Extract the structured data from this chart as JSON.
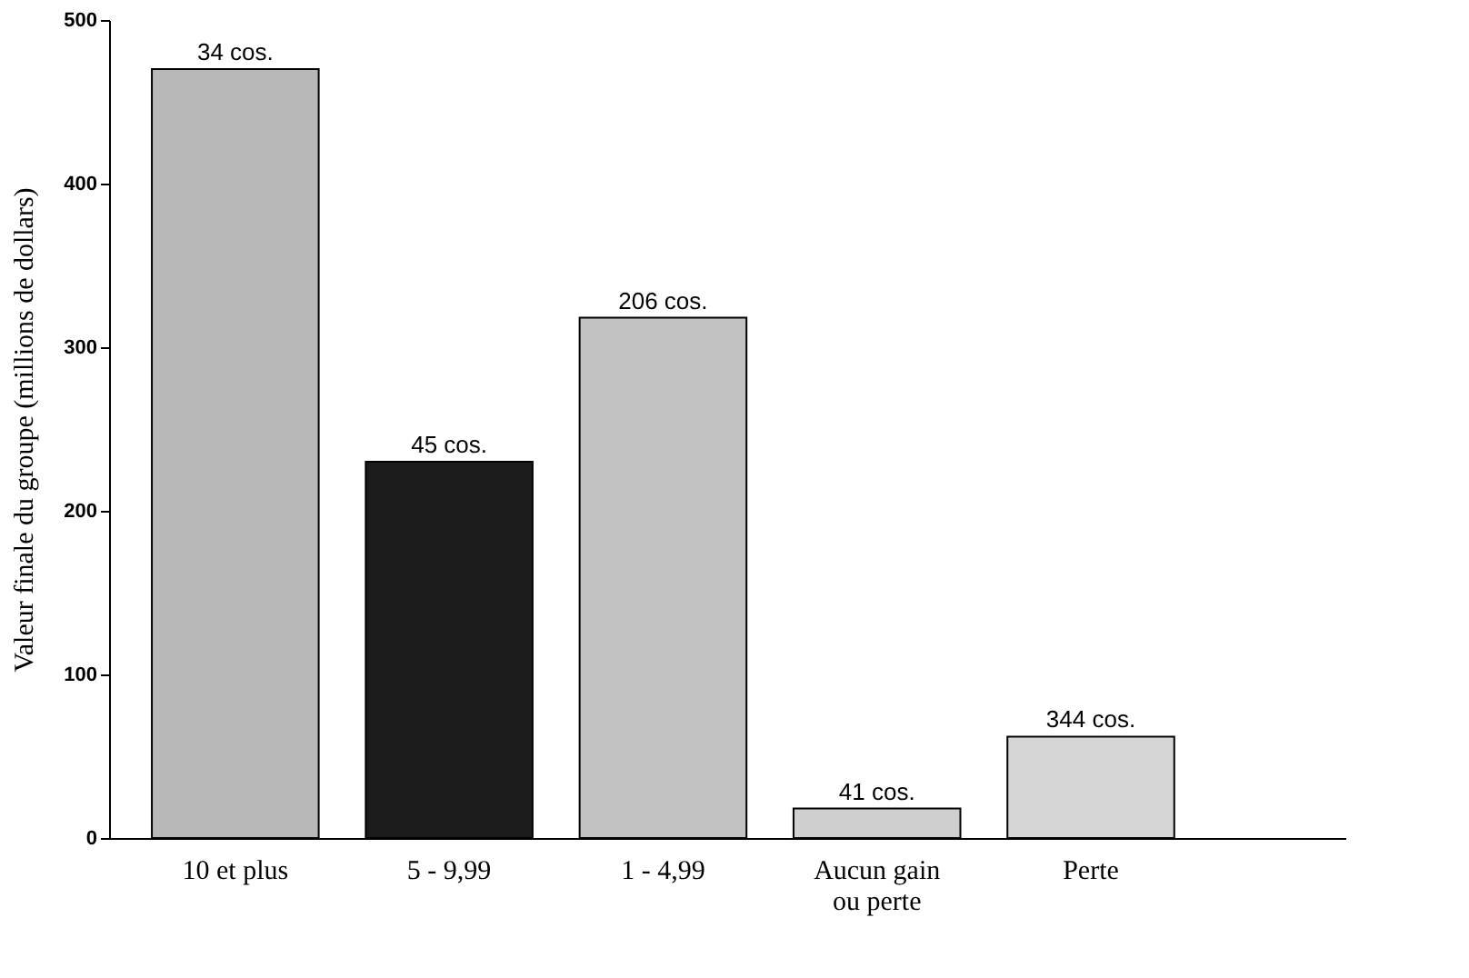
{
  "chart_data": {
    "type": "bar",
    "ylabel": "Valeur finale du groupe (millions de dollars)",
    "categories": [
      "10 et plus",
      "5 - 9,99",
      "1 - 4,99",
      "Aucun gain\nou perte",
      "Perte"
    ],
    "values": [
      470,
      230,
      318,
      18,
      62
    ],
    "annotations": [
      {
        "text": "34 cos.",
        "x": "10 et plus",
        "y": 470
      },
      {
        "text": "45 cos.",
        "x": "5 - 9,99",
        "y": 230
      },
      {
        "text": "206 cos.",
        "x": "1 - 4,99",
        "y": 318
      },
      {
        "text": "41 cos.",
        "x": "Aucun gain\nou perte",
        "y": 18
      },
      {
        "text": "344 cos.",
        "x": "Perte",
        "y": 62
      }
    ],
    "colors": [
      "#b8b8b8",
      "#1c1c1c",
      "#c2c2c2",
      "#cfcfcf",
      "#d6d6d6"
    ],
    "ylim": [
      0,
      500
    ],
    "yticks": [
      0,
      100,
      200,
      300,
      400,
      500
    ],
    "grid": false
  }
}
